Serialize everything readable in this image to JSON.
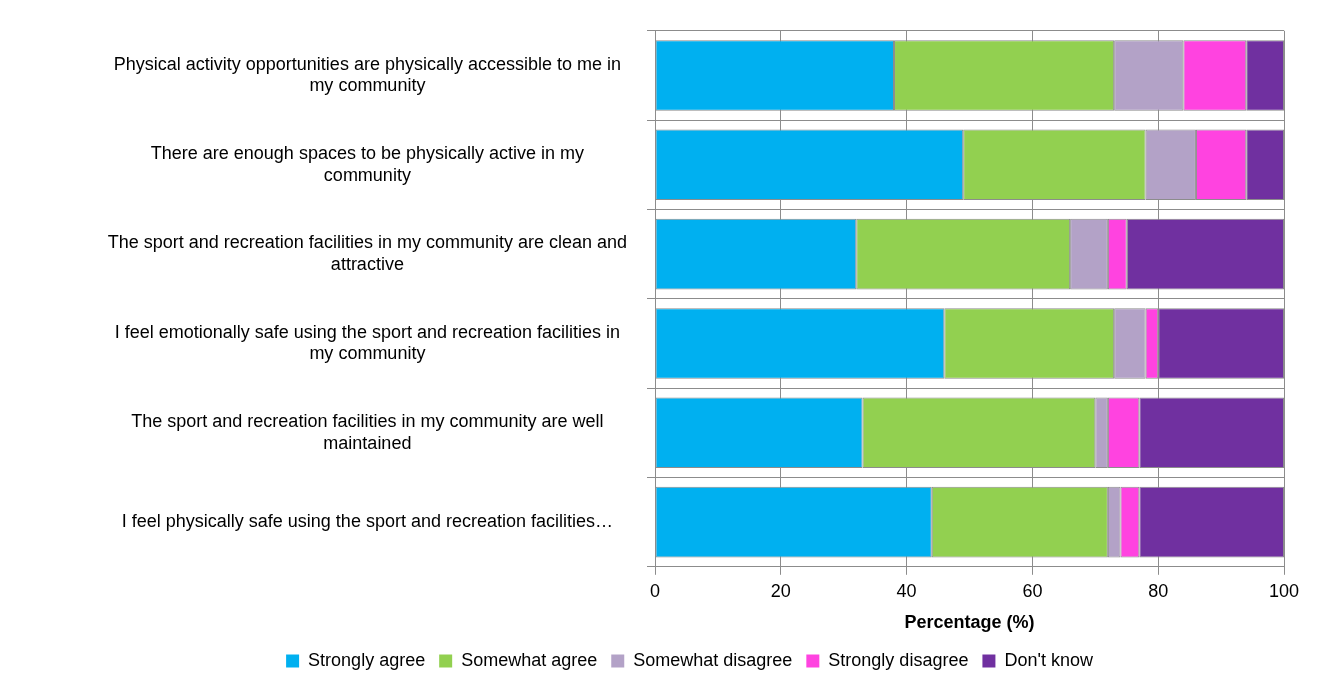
{
  "chart_data": {
    "type": "bar",
    "orientation": "horizontal",
    "stacked": true,
    "categories": [
      "Physical activity opportunities are physically accessible to me in my community",
      "There are enough spaces to be physically active in my community",
      "The sport and recreation facilities in my community are clean and attractive",
      "I feel emotionally safe using the sport and recreation facilities in my community",
      "The sport and recreation facilities in my community are well maintained",
      "I feel physically safe using the sport and recreation facilities…"
    ],
    "series": [
      {
        "name": "Strongly agree",
        "color": "#00b0f0",
        "values": [
          38,
          49,
          32,
          46,
          33,
          44
        ]
      },
      {
        "name": "Somewhat agree",
        "color": "#92d050",
        "values": [
          35,
          29,
          34,
          27,
          37,
          28
        ]
      },
      {
        "name": "Somewhat disagree",
        "color": "#b3a2c7",
        "values": [
          11,
          8,
          6,
          5,
          2,
          2
        ]
      },
      {
        "name": "Strongly disagree",
        "color": "#ff43e0",
        "values": [
          10,
          8,
          3,
          2,
          5,
          3
        ]
      },
      {
        "name": "Don't know",
        "color": "#7030a0",
        "values": [
          6,
          6,
          25,
          20,
          23,
          23
        ]
      }
    ],
    "xlabel": "Percentage (%)",
    "xlim": [
      0,
      100
    ],
    "xticks": [
      0,
      20,
      40,
      60,
      80,
      100
    ],
    "grid": true,
    "legend": "bottom"
  }
}
